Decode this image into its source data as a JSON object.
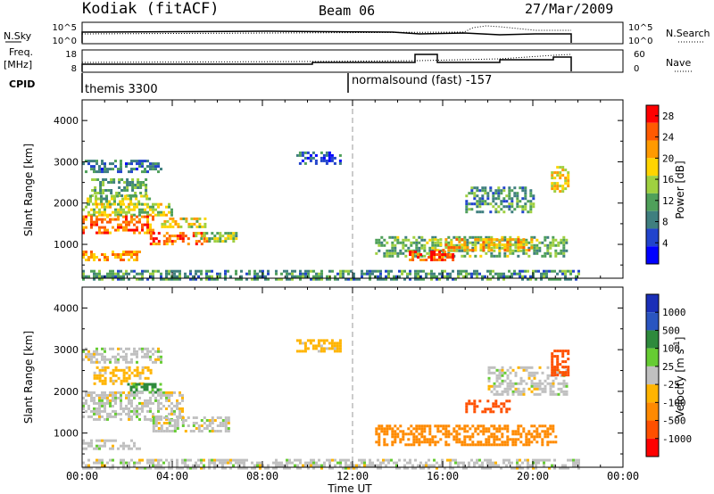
{
  "header": {
    "station": "Kodiak (fitACF)",
    "beam": "Beam 06",
    "date": "27/Mar/2009"
  },
  "top_panels": {
    "nsky_label": "N.Sky",
    "nsky_ticks": [
      "10^5",
      "10^0"
    ],
    "nsearch_label": "N.Search",
    "freq_label_line1": "Freq.",
    "freq_label_line2": "[MHz]",
    "freq_ticks": [
      "18",
      "8"
    ],
    "nave_label": "Nave",
    "nave_ticks": [
      "60",
      "0"
    ],
    "cpid_label": "CPID",
    "cpid_modes": [
      {
        "name": "themis 3300",
        "start_hour": 0
      },
      {
        "name": "normalsound (fast) -157",
        "start_hour": 12
      }
    ]
  },
  "time_axis": {
    "label": "Time UT",
    "ticks": [
      "00:00",
      "04:00",
      "08:00",
      "12:00",
      "16:00",
      "20:00",
      "00:00"
    ]
  },
  "colors": {
    "power_scale": [
      "#0000ff",
      "#2244cc",
      "#3f7f7f",
      "#4fa05a",
      "#9fd040",
      "#ffd400",
      "#ff9a00",
      "#ff5a00",
      "#ff0000"
    ],
    "velocity_scale": [
      "#1a2fb8",
      "#2a55c0",
      "#2e8a3c",
      "#66cc33",
      "#c0c0c0",
      "#ffb400",
      "#ff8a00",
      "#ff5000",
      "#ff0000"
    ]
  },
  "chart_data": [
    {
      "type": "heatmap",
      "xlabel": "",
      "ylabel": "Slant Range [km]",
      "xlim": [
        0,
        24
      ],
      "ylim": [
        180,
        4500
      ],
      "yticks": [
        1000,
        2000,
        3000,
        4000
      ],
      "colorbar": {
        "label": "Power [dB]",
        "ticks": [
          4,
          8,
          12,
          16,
          20,
          24,
          28
        ],
        "range": [
          0,
          30
        ]
      },
      "regions": [
        {
          "t": [
            0.0,
            3.5
          ],
          "r": [
            2750,
            3050
          ],
          "v": 8
        },
        {
          "t": [
            0.4,
            2.8
          ],
          "r": [
            2200,
            2600
          ],
          "v": 12
        },
        {
          "t": [
            0.2,
            3.0
          ],
          "r": [
            1950,
            2200
          ],
          "v": 14
        },
        {
          "t": [
            0.0,
            4.0
          ],
          "r": [
            1700,
            2000
          ],
          "v": 16
        },
        {
          "t": [
            0.0,
            3.2
          ],
          "r": [
            1300,
            1700
          ],
          "v": 24
        },
        {
          "t": [
            3.5,
            5.5
          ],
          "r": [
            1400,
            1650
          ],
          "v": 18
        },
        {
          "t": [
            3.0,
            5.5
          ],
          "r": [
            1000,
            1300
          ],
          "v": 24
        },
        {
          "t": [
            5.0,
            6.8
          ],
          "r": [
            1100,
            1300
          ],
          "v": 14
        },
        {
          "t": [
            0.0,
            2.5
          ],
          "r": [
            650,
            850
          ],
          "v": 22
        },
        {
          "t": [
            9.5,
            11.5
          ],
          "r": [
            2950,
            3250
          ],
          "v": 6
        },
        {
          "t": [
            13.0,
            21.5
          ],
          "r": [
            700,
            1200
          ],
          "v": 12
        },
        {
          "t": [
            15.5,
            20.0
          ],
          "r": [
            850,
            1150
          ],
          "v": 20
        },
        {
          "t": [
            14.5,
            16.5
          ],
          "r": [
            600,
            850
          ],
          "v": 26
        },
        {
          "t": [
            17.0,
            20.0
          ],
          "r": [
            1800,
            2400
          ],
          "v": 10
        },
        {
          "t": [
            20.8,
            21.6
          ],
          "r": [
            2300,
            2900
          ],
          "v": 18
        },
        {
          "t": [
            0.0,
            22.0
          ],
          "r": [
            180,
            380
          ],
          "v": 10
        }
      ]
    },
    {
      "type": "heatmap",
      "xlabel": "Time UT",
      "ylabel": "Slant Range [km]",
      "xlim": [
        0,
        24
      ],
      "ylim": [
        180,
        4500
      ],
      "yticks": [
        1000,
        2000,
        3000,
        4000
      ],
      "colorbar": {
        "label": "Velocity [m s^-1]",
        "ticks": [
          1000,
          500,
          100,
          25,
          -25,
          -100,
          -500,
          -1000
        ]
      },
      "regions": [
        {
          "t": [
            0.0,
            3.5
          ],
          "r": [
            2700,
            3050
          ],
          "v": 0
        },
        {
          "t": [
            0.5,
            3.0
          ],
          "r": [
            2200,
            2600
          ],
          "v": -50
        },
        {
          "t": [
            2.0,
            3.5
          ],
          "r": [
            2000,
            2200
          ],
          "v": 120
        },
        {
          "t": [
            0.0,
            4.5
          ],
          "r": [
            1300,
            2000
          ],
          "v": 0
        },
        {
          "t": [
            3.0,
            6.5
          ],
          "r": [
            1050,
            1400
          ],
          "v": 0
        },
        {
          "t": [
            0.0,
            2.5
          ],
          "r": [
            650,
            850
          ],
          "v": 0
        },
        {
          "t": [
            9.5,
            11.5
          ],
          "r": [
            2950,
            3250
          ],
          "v": -50
        },
        {
          "t": [
            13.0,
            21.0
          ],
          "r": [
            700,
            1200
          ],
          "v": -150
        },
        {
          "t": [
            17.0,
            19.0
          ],
          "r": [
            1500,
            1800
          ],
          "v": -700
        },
        {
          "t": [
            18.0,
            21.5
          ],
          "r": [
            1900,
            2600
          ],
          "v": 0
        },
        {
          "t": [
            20.8,
            21.6
          ],
          "r": [
            2400,
            3000
          ],
          "v": -700
        },
        {
          "t": [
            0.0,
            22.0
          ],
          "r": [
            180,
            380
          ],
          "v": 0
        }
      ]
    }
  ]
}
